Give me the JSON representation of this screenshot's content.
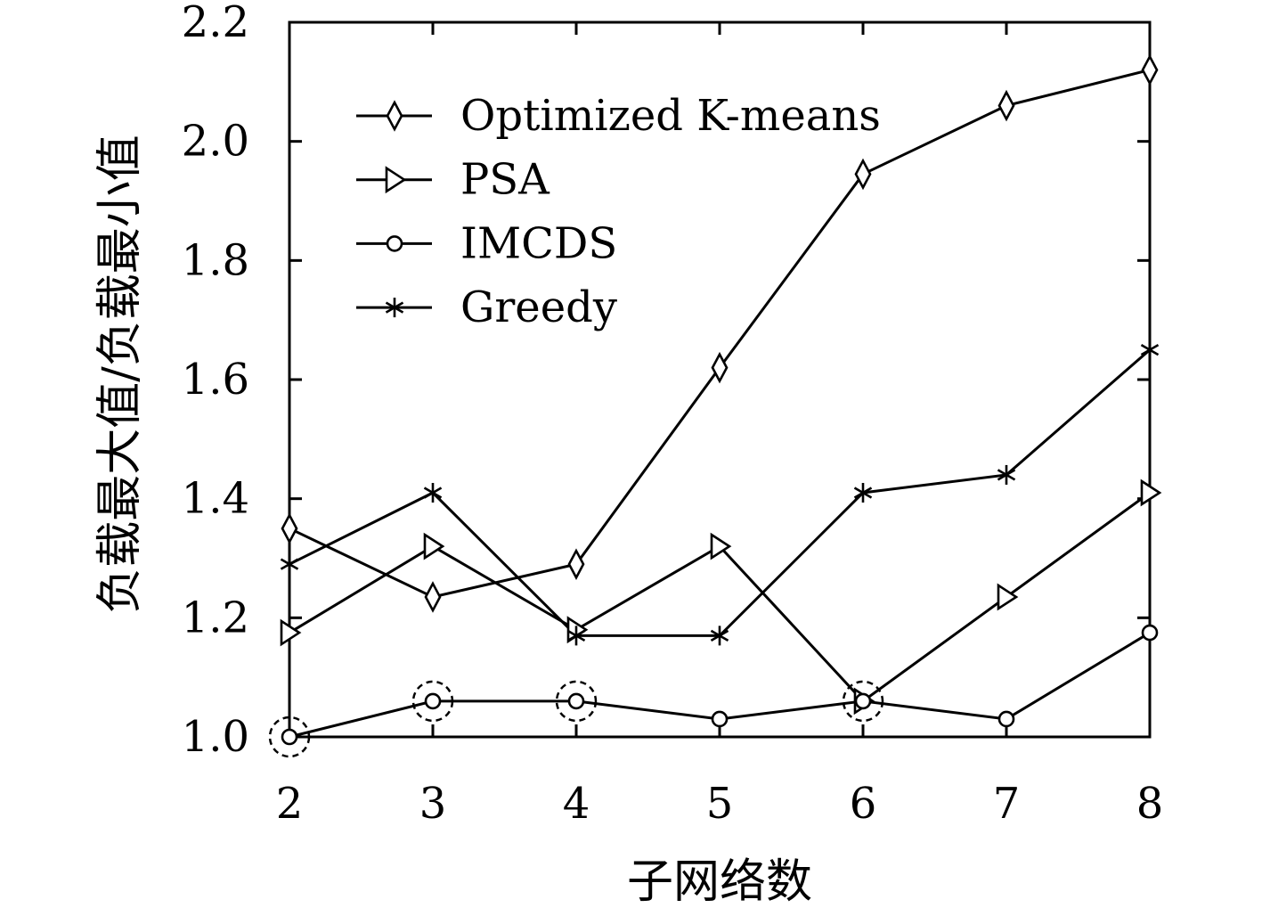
{
  "chart_data": {
    "type": "line",
    "xlabel": "子网络数",
    "ylabel": "负载最大值/负载最小值",
    "x": [
      2,
      3,
      4,
      5,
      6,
      7,
      8
    ],
    "xlim": [
      2,
      8
    ],
    "ylim": [
      1.0,
      2.2
    ],
    "xtick_labels": [
      "2",
      "3",
      "4",
      "5",
      "6",
      "7",
      "8"
    ],
    "ytick_labels": [
      "1.0",
      "1.2",
      "1.4",
      "1.6",
      "1.8",
      "2.0",
      "2.2"
    ],
    "grid": false,
    "legend_position": "top-left",
    "line_color": "#000000",
    "series": [
      {
        "name": "Optimized K-means",
        "marker": "diamond",
        "values": [
          1.35,
          1.235,
          1.29,
          1.62,
          1.945,
          2.06,
          2.12
        ]
      },
      {
        "name": "PSA",
        "marker": "triangle-right",
        "values": [
          1.175,
          1.32,
          1.18,
          1.32,
          1.06,
          1.235,
          1.41
        ]
      },
      {
        "name": "IMCDS",
        "marker": "circle",
        "values": [
          1.0,
          1.06,
          1.06,
          1.03,
          1.06,
          1.03,
          1.175
        ]
      },
      {
        "name": "Greedy",
        "marker": "asterisk",
        "values": [
          1.29,
          1.41,
          1.17,
          1.17,
          1.41,
          1.44,
          1.65
        ]
      }
    ],
    "highlighted_points": [
      {
        "x": 2,
        "y": 1.0
      },
      {
        "x": 3,
        "y": 1.06
      },
      {
        "x": 4,
        "y": 1.06
      },
      {
        "x": 6,
        "y": 1.06
      }
    ]
  }
}
